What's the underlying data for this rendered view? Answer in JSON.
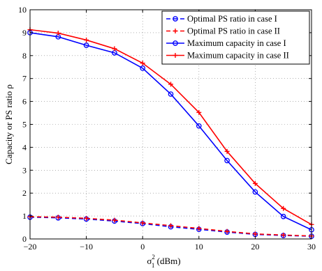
{
  "chart_data": {
    "type": "line",
    "title": "",
    "xlabel_main": "σ",
    "xlabel_sub": "1",
    "xlabel_sup": "2",
    "xlabel_unit": " (dBm)",
    "ylabel": "Capacity or PS ratio ρ",
    "xlim": [
      -20,
      30
    ],
    "ylim": [
      0,
      10
    ],
    "xticks": [
      -20,
      -10,
      0,
      10,
      20,
      30
    ],
    "xtick_labels": [
      "−20",
      "−10",
      "0",
      "10",
      "20",
      "30"
    ],
    "yticks": [
      0,
      1,
      2,
      3,
      4,
      5,
      6,
      7,
      8,
      9,
      10
    ],
    "yticks_labels": [
      "0",
      "1",
      "2",
      "3",
      "4",
      "5",
      "6",
      "7",
      "8",
      "9",
      "10"
    ],
    "grid": true,
    "legend_position": "top-right",
    "x": [
      -20,
      -15,
      -10,
      -5,
      0,
      5,
      10,
      15,
      20,
      25,
      30
    ],
    "series": [
      {
        "name": "Optimal PS ratio in case I",
        "color": "#0000ff",
        "style": "dashed",
        "marker": "circle",
        "values": [
          0.95,
          0.92,
          0.87,
          0.78,
          0.67,
          0.53,
          0.42,
          0.3,
          0.2,
          0.15,
          0.12
        ]
      },
      {
        "name": "Optimal PS ratio in case II",
        "color": "#ff0000",
        "style": "dashed",
        "marker": "plus",
        "values": [
          0.97,
          0.95,
          0.9,
          0.82,
          0.7,
          0.58,
          0.46,
          0.33,
          0.22,
          0.17,
          0.13
        ]
      },
      {
        "name": "Maximum capacity in case I",
        "color": "#0000ff",
        "style": "solid",
        "marker": "circle",
        "values": [
          9.0,
          8.82,
          8.45,
          8.12,
          7.45,
          6.32,
          4.93,
          3.42,
          2.05,
          0.98,
          0.4
        ]
      },
      {
        "name": "Maximum capacity in case II",
        "color": "#ff0000",
        "style": "solid",
        "marker": "plus",
        "values": [
          9.13,
          8.98,
          8.68,
          8.3,
          7.67,
          6.75,
          5.52,
          3.82,
          2.42,
          1.33,
          0.63
        ]
      }
    ]
  }
}
